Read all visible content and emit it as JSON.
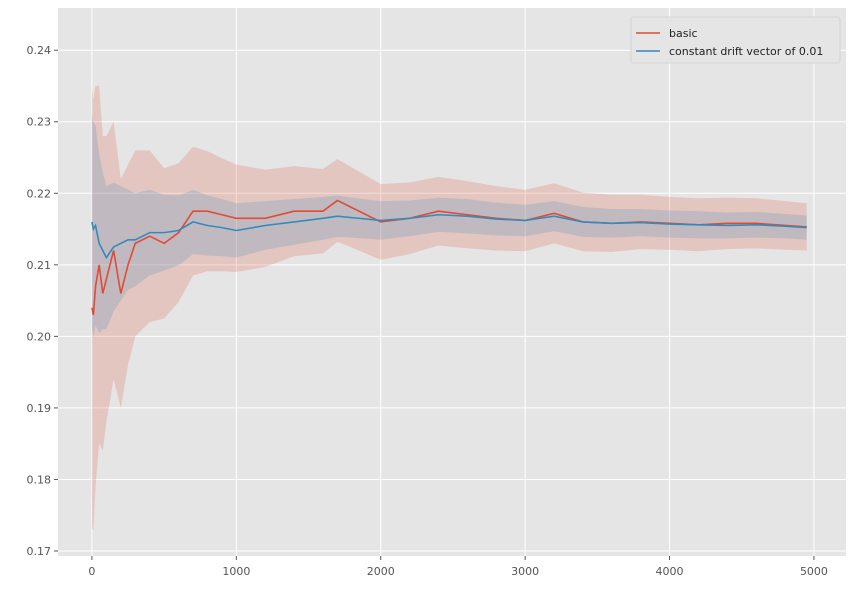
{
  "chart_data": {
    "type": "line",
    "title": "",
    "xlabel": "",
    "ylabel": "",
    "xlim": [
      -235,
      5222
    ],
    "ylim": [
      0.1693,
      0.2459
    ],
    "xticks": [
      0,
      1000,
      2000,
      3000,
      4000,
      5000
    ],
    "xtick_labels": [
      "0",
      "1000",
      "2000",
      "3000",
      "4000",
      "5000"
    ],
    "yticks": [
      0.17,
      0.18,
      0.19,
      0.2,
      0.21,
      0.22,
      0.23,
      0.24
    ],
    "ytick_labels": [
      "0.17",
      "0.18",
      "0.19",
      "0.20",
      "0.21",
      "0.22",
      "0.23",
      "0.24"
    ],
    "grid": true,
    "legend_position": "top-right",
    "background": "#E5E5E5",
    "x": [
      0,
      10,
      25,
      50,
      75,
      100,
      150,
      200,
      250,
      300,
      400,
      500,
      600,
      700,
      800,
      900,
      1000,
      1200,
      1400,
      1600,
      1700,
      1800,
      2000,
      2200,
      2400,
      2600,
      2800,
      3000,
      3200,
      3400,
      3600,
      3800,
      4000,
      4200,
      4400,
      4600,
      4800,
      4950
    ],
    "series": [
      {
        "name": "basic",
        "color": "#E24A33",
        "values": [
          0.204,
          0.203,
          0.207,
          0.21,
          0.206,
          0.208,
          0.212,
          0.206,
          0.21,
          0.213,
          0.214,
          0.213,
          0.2145,
          0.2175,
          0.2175,
          0.217,
          0.2165,
          0.2165,
          0.2175,
          0.2175,
          0.219,
          0.218,
          0.216,
          0.2165,
          0.2175,
          0.217,
          0.2165,
          0.2162,
          0.2172,
          0.216,
          0.2158,
          0.216,
          0.2158,
          0.2156,
          0.2158,
          0.2158,
          0.2155,
          0.2153
        ],
        "band_halfwidth": [
          0.031,
          0.03,
          0.028,
          0.025,
          0.022,
          0.02,
          0.018,
          0.016,
          0.014,
          0.013,
          0.012,
          0.0105,
          0.0097,
          0.009,
          0.0084,
          0.0079,
          0.0075,
          0.0068,
          0.0063,
          0.0059,
          0.0058,
          0.0056,
          0.0053,
          0.005,
          0.0048,
          0.0047,
          0.0045,
          0.0043,
          0.0042,
          0.0041,
          0.004,
          0.0038,
          0.0037,
          0.0037,
          0.0036,
          0.0035,
          0.0034,
          0.0033
        ]
      },
      {
        "name": "constant drift vector of 0.01",
        "color": "#348ABD",
        "values": [
          0.216,
          0.215,
          0.2155,
          0.213,
          0.212,
          0.211,
          0.2125,
          0.213,
          0.2135,
          0.2135,
          0.2145,
          0.2145,
          0.2148,
          0.216,
          0.2155,
          0.2152,
          0.2148,
          0.2155,
          0.216,
          0.2165,
          0.2168,
          0.2166,
          0.2162,
          0.2165,
          0.217,
          0.2168,
          0.2164,
          0.2162,
          0.2168,
          0.216,
          0.2158,
          0.2159,
          0.2157,
          0.2156,
          0.2155,
          0.2156,
          0.2154,
          0.2152
        ],
        "band_halfwidth": [
          0.015,
          0.015,
          0.014,
          0.0125,
          0.011,
          0.01,
          0.009,
          0.008,
          0.007,
          0.0065,
          0.006,
          0.0053,
          0.0049,
          0.0045,
          0.0042,
          0.004,
          0.0038,
          0.0034,
          0.0032,
          0.003,
          0.0029,
          0.0028,
          0.0027,
          0.0025,
          0.0024,
          0.0024,
          0.0023,
          0.0022,
          0.0021,
          0.0021,
          0.002,
          0.0019,
          0.0019,
          0.0019,
          0.0018,
          0.0018,
          0.0017,
          0.0017
        ]
      }
    ]
  }
}
